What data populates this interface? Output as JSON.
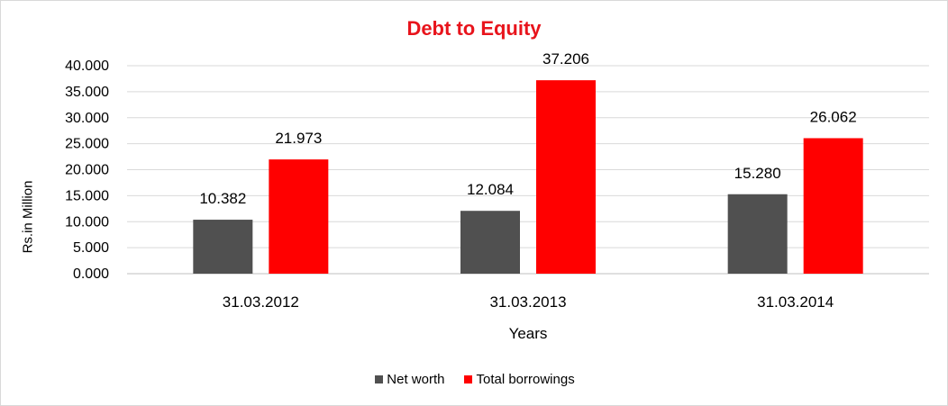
{
  "chart_data": {
    "type": "bar",
    "title": "Debt to Equity",
    "xlabel": "Years",
    "ylabel": "Rs.in Million",
    "categories": [
      "31.03.2012",
      "31.03.2013",
      "31.03.2014"
    ],
    "series": [
      {
        "name": "Net worth",
        "values": [
          10.382,
          12.084,
          15.28
        ],
        "labels": [
          "10.382",
          "12.084",
          "15.280"
        ],
        "color": "#505050"
      },
      {
        "name": "Total borrowings",
        "values": [
          21.973,
          37.206,
          26.062
        ],
        "labels": [
          "21.973",
          "37.206",
          "26.062"
        ],
        "color": "#ff0000"
      }
    ],
    "ylim": [
      0,
      40
    ],
    "yticks": [
      "0.000",
      "5.000",
      "10.000",
      "15.000",
      "20.000",
      "25.000",
      "30.000",
      "35.000",
      "40.000"
    ],
    "grid": true,
    "legend": "bottom-center"
  },
  "colors": {
    "title": "#e8141c",
    "grid": "#d9d9d9",
    "axis": "#bfbfbf"
  }
}
